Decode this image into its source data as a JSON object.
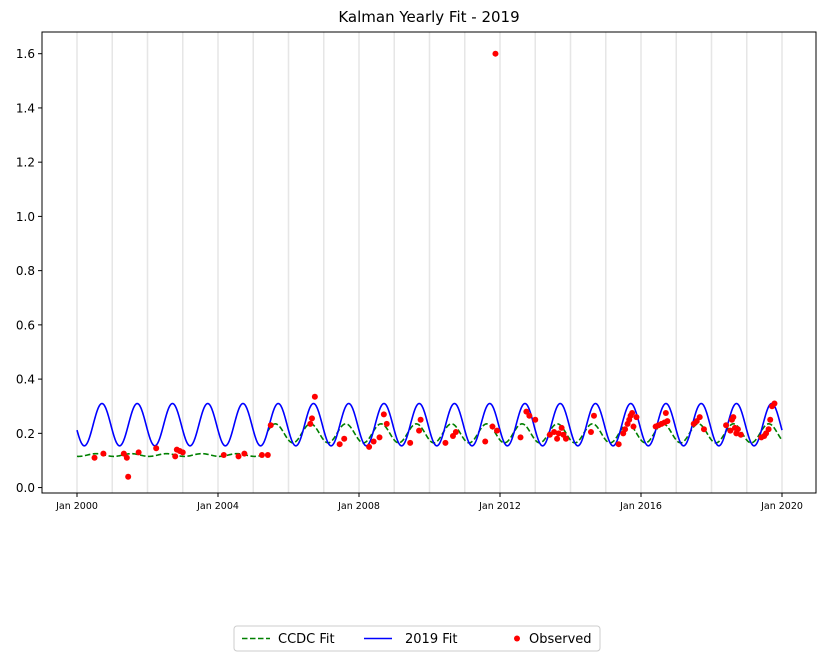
{
  "chart_data": {
    "type": "line",
    "title": "Kalman Yearly Fit - 2019",
    "xlabel": "",
    "ylabel": "",
    "xlim": [
      "2000-01-01",
      "2020-01-01"
    ],
    "ylim": [
      -0.02,
      1.68
    ],
    "x_ticks": [
      "Jan 2000",
      "Jan 2004",
      "Jan 2008",
      "Jan 2012",
      "Jan 2016",
      "Jan 2020"
    ],
    "y_ticks": [
      "0.0",
      "0.2",
      "0.4",
      "0.6",
      "0.8",
      "1.0",
      "1.2",
      "1.4",
      "1.6"
    ],
    "grid": "vertical lines at each year boundary (light gray)",
    "legend_position": "bottom-center, below plot",
    "colors": {
      "ccdc": "#008000",
      "fit2019": "#0000ff",
      "observed": "#ff0000",
      "grid": "#e6e6e6"
    },
    "series": [
      {
        "name": "CCDC Fit",
        "style": "dashed line",
        "segments": [
          {
            "start": "2000-01-01",
            "end": "2005-06-01",
            "mean": 0.12,
            "amplitude": 0.005,
            "phase_peak_month": 7
          },
          {
            "start": "2005-06-01",
            "end": "2020-01-01",
            "mean": 0.2,
            "amplitude": 0.035,
            "phase_peak_month": 8
          }
        ]
      },
      {
        "name": "2019 Fit",
        "style": "solid line",
        "start": "2000-01-01",
        "end": "2020-01-01",
        "mean": 0.232,
        "amplitude": 0.078,
        "peak_month": 9,
        "trough_month": 3
      },
      {
        "name": "Observed",
        "style": "points",
        "points": [
          [
            "2000-07-01",
            0.11
          ],
          [
            "2000-10-01",
            0.125
          ],
          [
            "2001-05-01",
            0.125
          ],
          [
            "2001-06-01",
            0.11
          ],
          [
            "2001-06-15",
            0.04
          ],
          [
            "2001-10-01",
            0.13
          ],
          [
            "2002-04-01",
            0.145
          ],
          [
            "2002-10-15",
            0.115
          ],
          [
            "2002-11-01",
            0.14
          ],
          [
            "2002-12-01",
            0.135
          ],
          [
            "2003-01-01",
            0.13
          ],
          [
            "2004-03-01",
            0.12
          ],
          [
            "2004-08-01",
            0.115
          ],
          [
            "2004-10-01",
            0.125
          ],
          [
            "2005-04-01",
            0.12
          ],
          [
            "2005-06-01",
            0.12
          ],
          [
            "2005-07-01",
            0.23
          ],
          [
            "2006-08-15",
            0.235
          ],
          [
            "2006-09-01",
            0.255
          ],
          [
            "2006-10-01",
            0.335
          ],
          [
            "2007-06-15",
            0.16
          ],
          [
            "2007-08-01",
            0.18
          ],
          [
            "2008-04-15",
            0.15
          ],
          [
            "2008-06-01",
            0.17
          ],
          [
            "2008-08-01",
            0.185
          ],
          [
            "2008-09-15",
            0.27
          ],
          [
            "2008-10-15",
            0.235
          ],
          [
            "2009-06-15",
            0.165
          ],
          [
            "2009-09-15",
            0.21
          ],
          [
            "2009-10-01",
            0.25
          ],
          [
            "2010-06-15",
            0.165
          ],
          [
            "2010-09-01",
            0.19
          ],
          [
            "2010-10-01",
            0.205
          ],
          [
            "2011-08-01",
            0.17
          ],
          [
            "2011-10-15",
            0.225
          ],
          [
            "2011-11-15",
            1.6
          ],
          [
            "2011-12-01",
            0.21
          ],
          [
            "2012-08-01",
            0.185
          ],
          [
            "2012-10-01",
            0.28
          ],
          [
            "2012-11-01",
            0.265
          ],
          [
            "2013-01-01",
            0.25
          ],
          [
            "2013-06-01",
            0.195
          ],
          [
            "2013-07-15",
            0.205
          ],
          [
            "2013-08-15",
            0.18
          ],
          [
            "2013-09-01",
            0.2
          ],
          [
            "2013-10-01",
            0.22
          ],
          [
            "2013-10-20",
            0.195
          ],
          [
            "2013-11-15",
            0.18
          ],
          [
            "2014-08-01",
            0.205
          ],
          [
            "2014-09-01",
            0.265
          ],
          [
            "2015-05-15",
            0.16
          ],
          [
            "2015-07-01",
            0.2
          ],
          [
            "2015-07-20",
            0.215
          ],
          [
            "2015-08-15",
            0.235
          ],
          [
            "2015-09-01",
            0.25
          ],
          [
            "2015-09-15",
            0.265
          ],
          [
            "2015-10-01",
            0.275
          ],
          [
            "2015-10-15",
            0.225
          ],
          [
            "2015-11-15",
            0.26
          ],
          [
            "2016-06-01",
            0.225
          ],
          [
            "2016-07-01",
            0.23
          ],
          [
            "2016-08-01",
            0.235
          ],
          [
            "2016-09-01",
            0.24
          ],
          [
            "2016-09-15",
            0.275
          ],
          [
            "2016-10-01",
            0.245
          ],
          [
            "2017-07-01",
            0.235
          ],
          [
            "2017-08-01",
            0.245
          ],
          [
            "2017-09-01",
            0.26
          ],
          [
            "2017-10-15",
            0.215
          ],
          [
            "2018-06-01",
            0.23
          ],
          [
            "2018-07-15",
            0.21
          ],
          [
            "2018-08-01",
            0.25
          ],
          [
            "2018-08-15",
            0.26
          ],
          [
            "2018-09-01",
            0.22
          ],
          [
            "2018-09-15",
            0.2
          ],
          [
            "2018-10-01",
            0.215
          ],
          [
            "2018-11-01",
            0.195
          ],
          [
            "2019-06-01",
            0.185
          ],
          [
            "2019-07-01",
            0.19
          ],
          [
            "2019-07-20",
            0.2
          ],
          [
            "2019-08-15",
            0.215
          ],
          [
            "2019-09-01",
            0.25
          ],
          [
            "2019-09-20",
            0.3
          ],
          [
            "2019-10-15",
            0.31
          ]
        ]
      }
    ]
  }
}
